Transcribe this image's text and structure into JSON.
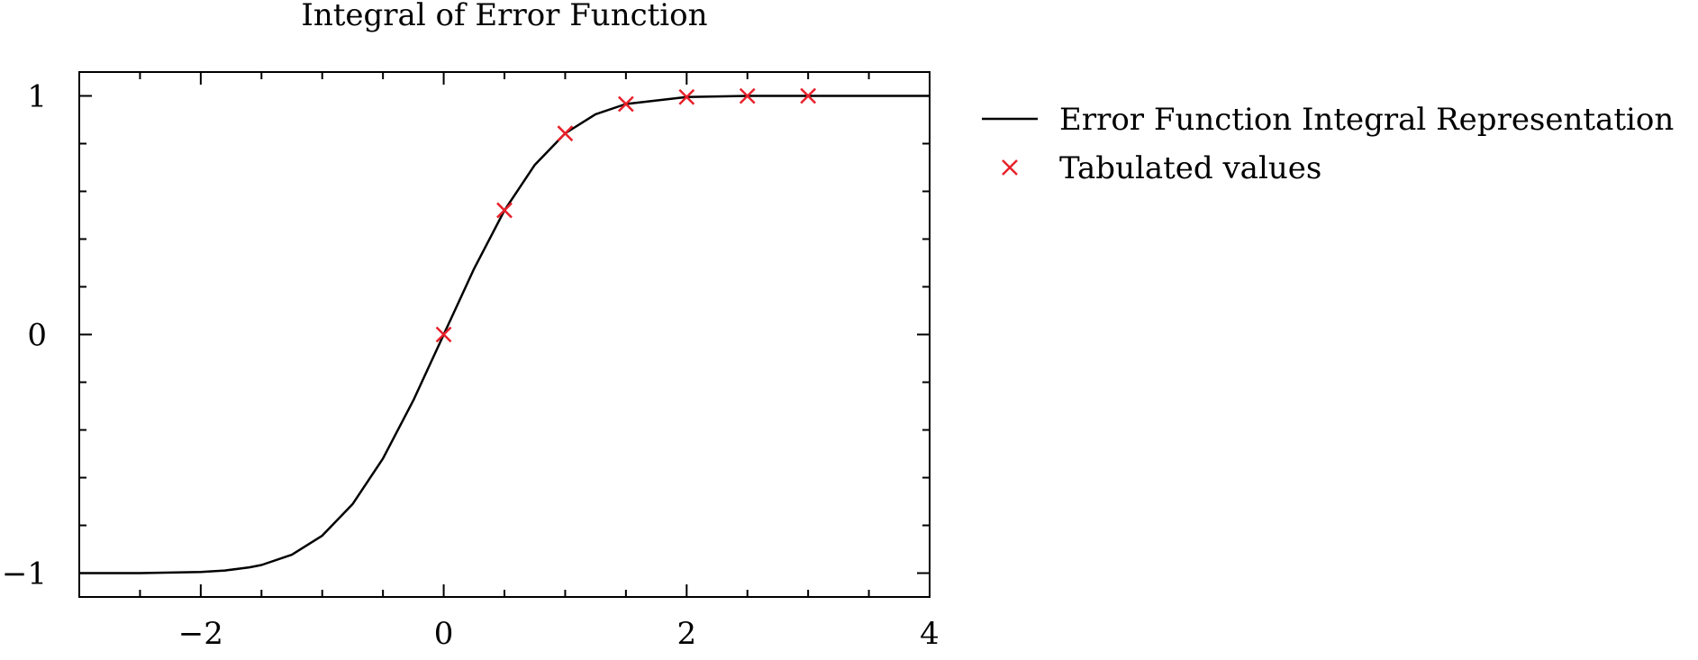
{
  "chart_data": {
    "type": "line",
    "title": "Integral of Error Function",
    "xlabel": "",
    "ylabel": "",
    "xlim": [
      -3,
      4
    ],
    "ylim": [
      -1.1,
      1.1
    ],
    "grid": false,
    "legend_placement": "outside-right",
    "x_ticks": [
      -2,
      0,
      2,
      4
    ],
    "x_tick_labels": [
      "−2",
      "0",
      "2",
      "4"
    ],
    "y_ticks": [
      -1,
      0,
      1
    ],
    "y_tick_labels": [
      "−1",
      "0",
      "1"
    ],
    "series": [
      {
        "name": "Error Function Integral Representation",
        "kind": "line",
        "color": "#000000",
        "x": [
          -3.0,
          -2.5,
          -2.0,
          -1.8,
          -1.6,
          -1.5,
          -1.25,
          -1.0,
          -0.75,
          -0.5,
          -0.25,
          0.0,
          0.25,
          0.5,
          0.75,
          1.0,
          1.25,
          1.5,
          2.0,
          2.5,
          3.0,
          3.5,
          4.0
        ],
        "y": [
          -1.0,
          -1.0,
          -0.995,
          -0.989,
          -0.976,
          -0.966,
          -0.923,
          -0.843,
          -0.711,
          -0.52,
          -0.276,
          0.0,
          0.276,
          0.52,
          0.711,
          0.843,
          0.923,
          0.966,
          0.995,
          1.0,
          1.0,
          1.0,
          1.0
        ]
      },
      {
        "name": "Tabulated values",
        "kind": "scatter",
        "marker": "x",
        "color": "#e8202a",
        "x": [
          0.0,
          0.5,
          1.0,
          1.5,
          2.0,
          2.5,
          3.0
        ],
        "y": [
          0.0,
          0.5205,
          0.8427,
          0.9661,
          0.9953,
          0.9996,
          1.0
        ]
      }
    ]
  }
}
